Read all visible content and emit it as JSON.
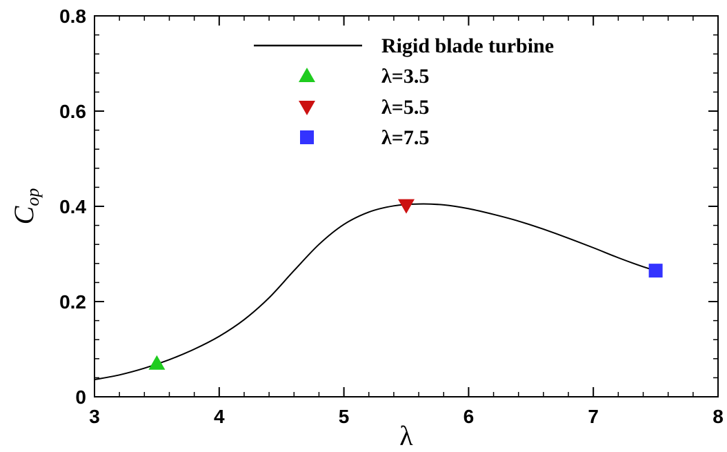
{
  "chart_data": {
    "type": "line",
    "xlabel": "λ",
    "ylabel_main": "C",
    "ylabel_sub": "op",
    "xlim": [
      3,
      8
    ],
    "ylim": [
      0,
      0.8
    ],
    "x_ticks": [
      3,
      4,
      5,
      6,
      7,
      8
    ],
    "x_tick_labels": [
      "3",
      "4",
      "5",
      "6",
      "7",
      "8"
    ],
    "y_ticks": [
      0,
      0.2,
      0.4,
      0.6,
      0.8
    ],
    "y_tick_labels": [
      "0",
      "0.2",
      "0.4",
      "0.6",
      "0.8"
    ],
    "x_minor_step": 0.2,
    "y_minor_step": 0.04,
    "grid": false,
    "legend_position": "top-center",
    "series": [
      {
        "name": "Rigid blade turbine",
        "kind": "line",
        "color": "#000000",
        "x": [
          3.0,
          3.2,
          3.4,
          3.6,
          3.8,
          4.0,
          4.2,
          4.4,
          4.6,
          4.8,
          5.0,
          5.2,
          5.4,
          5.6,
          5.8,
          6.0,
          6.2,
          6.4,
          6.6,
          6.8,
          7.0,
          7.2,
          7.4,
          7.5
        ],
        "y": [
          0.036,
          0.046,
          0.06,
          0.078,
          0.1,
          0.127,
          0.162,
          0.208,
          0.265,
          0.32,
          0.362,
          0.388,
          0.401,
          0.405,
          0.403,
          0.395,
          0.383,
          0.369,
          0.352,
          0.333,
          0.313,
          0.292,
          0.273,
          0.265
        ]
      },
      {
        "name": "λ=3.5",
        "kind": "marker",
        "marker": "triangle-up",
        "color": "#1fcc1f",
        "x": [
          3.5
        ],
        "y": [
          0.07
        ]
      },
      {
        "name": "λ=5.5",
        "kind": "marker",
        "marker": "triangle-down",
        "color": "#cc1111",
        "x": [
          5.5
        ],
        "y": [
          0.402
        ]
      },
      {
        "name": "λ=7.5",
        "kind": "marker",
        "marker": "square",
        "color": "#3333ff",
        "x": [
          7.5
        ],
        "y": [
          0.265
        ]
      }
    ]
  }
}
